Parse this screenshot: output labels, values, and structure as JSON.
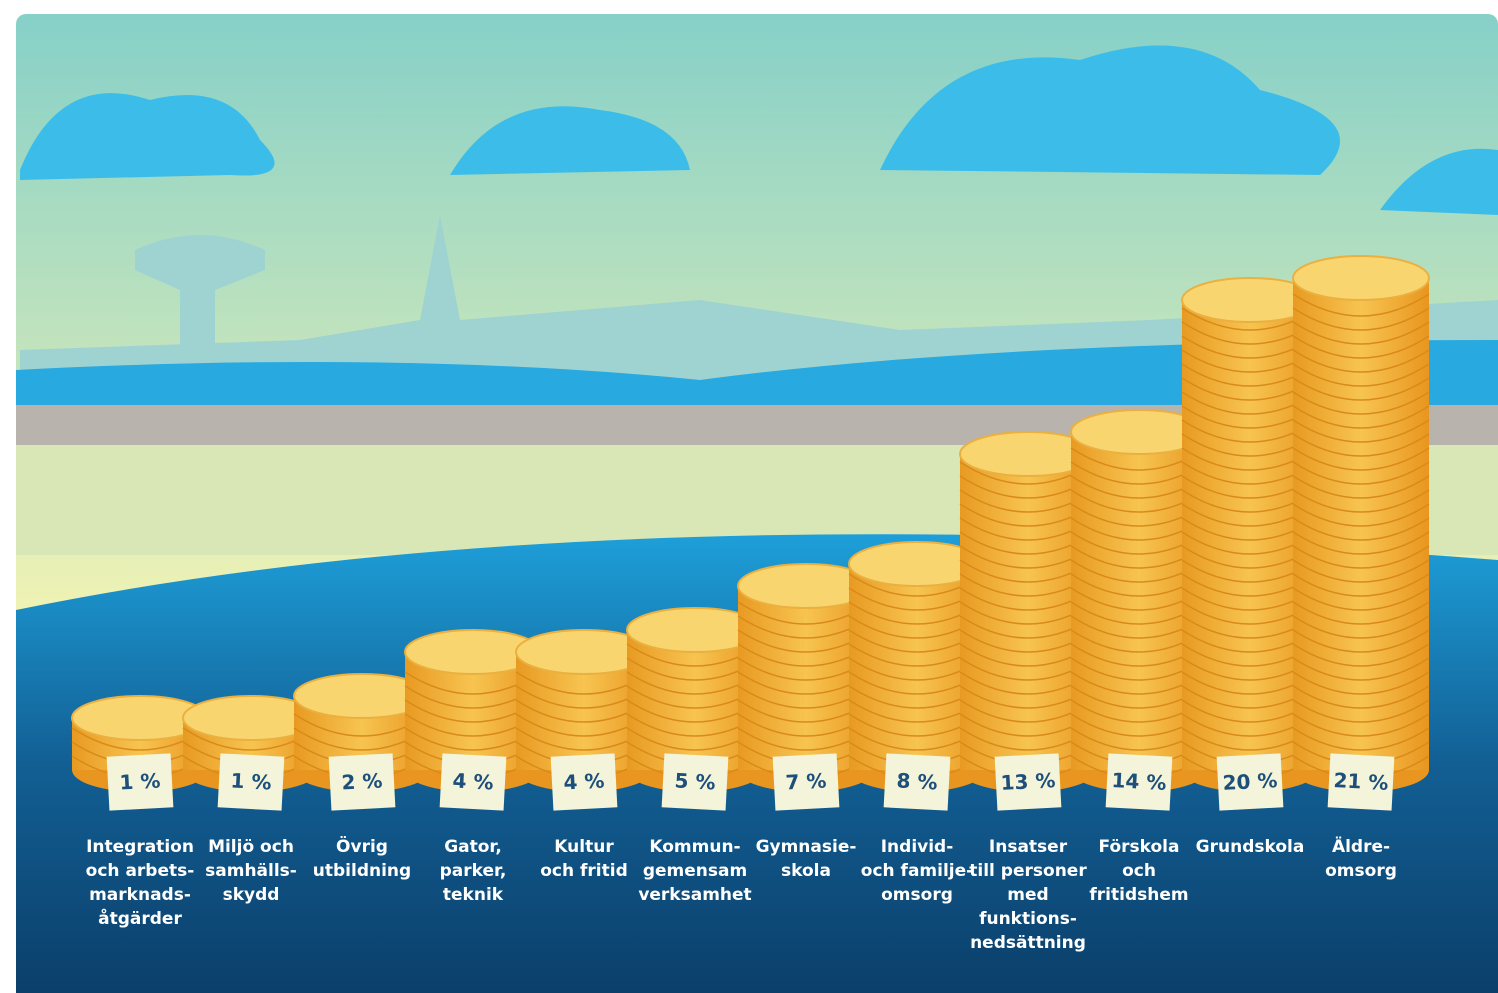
{
  "chart_data": {
    "type": "coin-stack",
    "categories": [
      "Integration\noch arbets-\nmarknads-\nåtgärder",
      "Miljö och\nsamhälls-\nskydd",
      "Övrig\nutbildning",
      "Gator,\nparker,\nteknik",
      "Kultur\noch fritid",
      "Kommun-\ngemensam\nverksamhet",
      "Gymnasie-\nskola",
      "Individ-\noch familje-\nomsorg",
      "Insatser\ntill personer\nmed\nfunktions-\nnedsättning",
      "Förskola\noch\nfritidshem",
      "Grundskola",
      "Äldre-\nomsorg"
    ],
    "values": [
      1,
      1,
      2,
      4,
      4,
      5,
      7,
      8,
      13,
      14,
      20,
      21
    ],
    "value_labels": [
      "1 %",
      "1 %",
      "2 %",
      "4 %",
      "4 %",
      "5 %",
      "7 %",
      "8 %",
      "13 %",
      "14 %",
      "20 %",
      "21 %"
    ],
    "color": "#f2b132"
  }
}
